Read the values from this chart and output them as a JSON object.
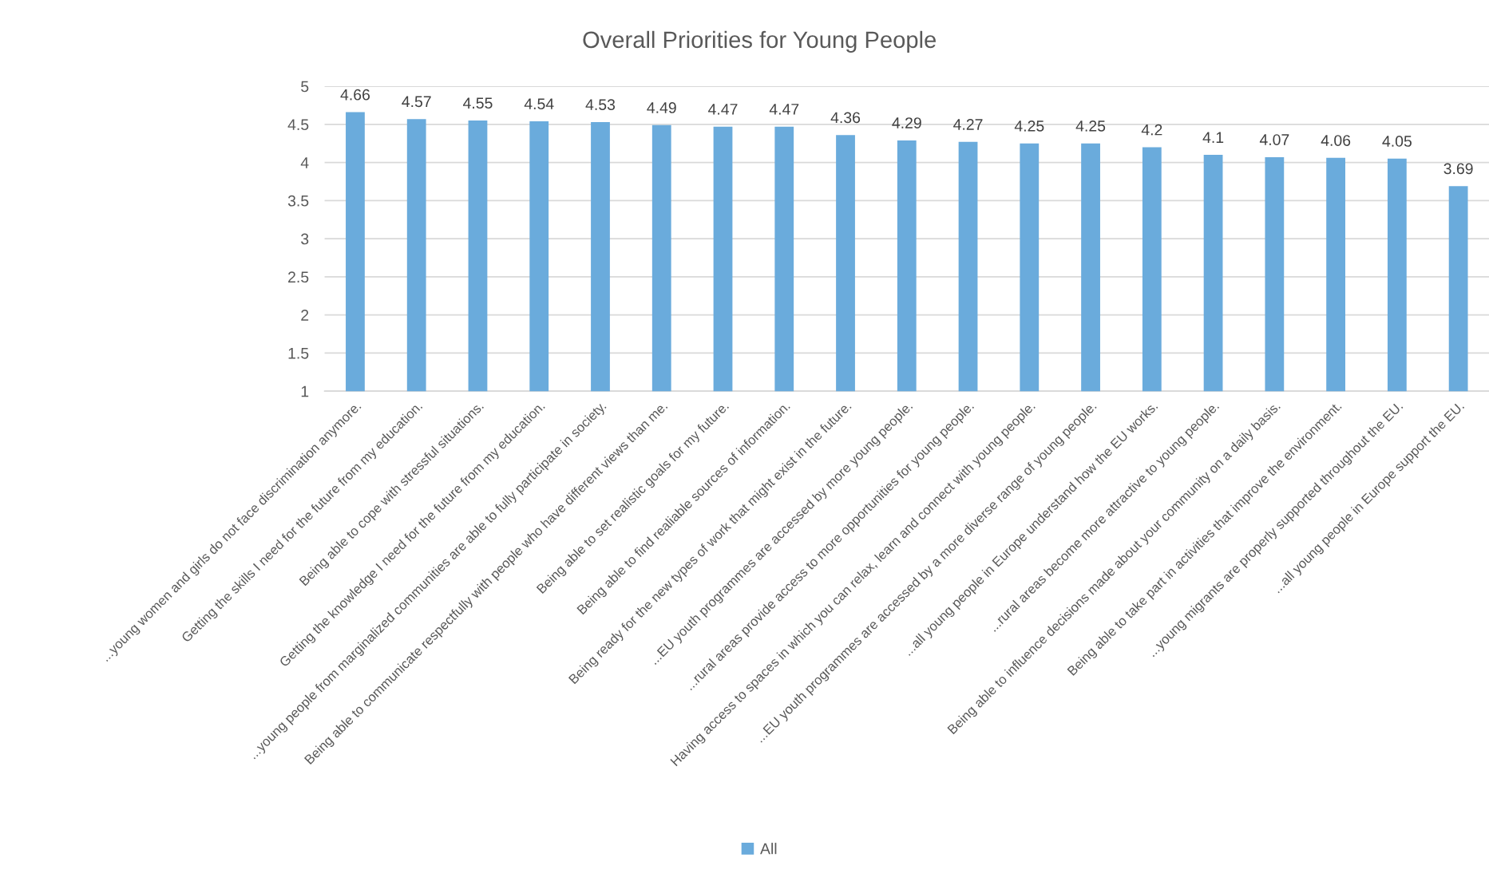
{
  "chart_data": {
    "type": "bar",
    "title": "Overall Priorities for Young People",
    "categories": [
      "...young women and girls do not face discrimination anymore.",
      "Getting the skills I need for the future from my education.",
      "Being able to cope with stressful situations.",
      "Getting the knowledge I need for the future from my education.",
      "...young people from marginalized communities are able to fully participate in society.",
      "Being able to communicate respectfully with people who have different views than me.",
      "Being able to set realistic goals for my future.",
      "Being able to find realiable sources of information.",
      "Being ready for the new types of work that might exist in the future.",
      "...EU youth programmes are accessed by more young people.",
      "...rural areas provide access to more opportunities for young people.",
      "Having access to spaces in which you can relax, learn and connect with young people.",
      "...EU youth programmes are accessed by a more diverse range of young people.",
      "...all young people in Europe understand how the EU works.",
      "...rural areas become more attractive to young people.",
      "Being able to influence decisions made about your community on a daily basis.",
      "Being able to take part in activities that improve the environment.",
      "...young migrants are properly supported throughout the EU.",
      "...all young people in Europe support the EU."
    ],
    "series": [
      {
        "name": "All",
        "color": "#6aabdc",
        "values": [
          4.66,
          4.57,
          4.55,
          4.54,
          4.53,
          4.49,
          4.47,
          4.47,
          4.36,
          4.29,
          4.27,
          4.25,
          4.25,
          4.2,
          4.1,
          4.07,
          4.06,
          4.05,
          3.69
        ]
      }
    ],
    "ylim": [
      1,
      5
    ],
    "yticks": [
      1,
      1.5,
      2,
      2.5,
      3,
      3.5,
      4,
      4.5,
      5
    ],
    "grid": "y",
    "legend": "bottom",
    "data_labels": true
  }
}
